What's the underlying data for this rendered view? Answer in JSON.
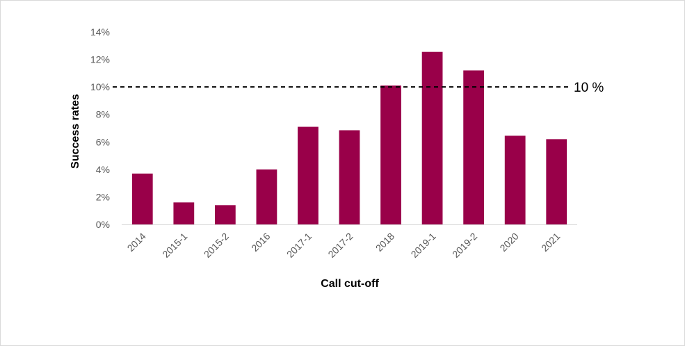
{
  "chart_data": {
    "type": "bar",
    "categories": [
      "2014",
      "2015-1",
      "2015-2",
      "2016",
      "2017-1",
      "2017-2",
      "2018",
      "2019-1",
      "2019-2",
      "2020",
      "2021"
    ],
    "values": [
      3.7,
      1.6,
      1.4,
      4.0,
      7.1,
      6.85,
      10.1,
      12.55,
      11.2,
      6.45,
      6.2
    ],
    "value_unit": "%",
    "xlabel": "Call cut-off",
    "ylabel": "Success rates",
    "ylim": [
      0,
      14
    ],
    "yticks": [
      "0%",
      "2%",
      "4%",
      "6%",
      "8%",
      "10%",
      "12%",
      "14%"
    ],
    "ytick_values": [
      0,
      2,
      4,
      6,
      8,
      10,
      12,
      14
    ],
    "reference_line": {
      "value": 10,
      "label": "10 %",
      "style": "dashed",
      "color": "#000000"
    },
    "bar_color": "#990049",
    "grid": false,
    "legend": "none"
  }
}
